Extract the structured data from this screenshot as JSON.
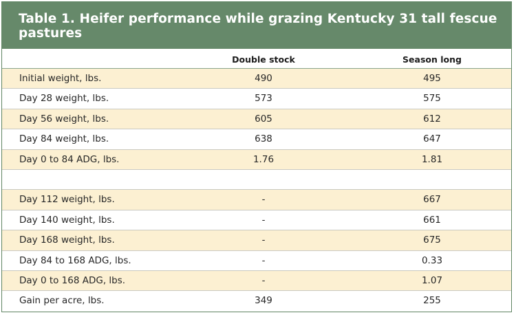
{
  "table": {
    "title": "Table 1. Heifer performance while grazing Kentucky 31 tall fescue pastures",
    "columns": [
      "Double stock",
      "Season long"
    ],
    "rows": [
      {
        "label": "Initial weight, lbs.",
        "double_stock": "490",
        "season_long": "495"
      },
      {
        "label": "Day 28 weight, lbs.",
        "double_stock": "573",
        "season_long": "575"
      },
      {
        "label": "Day 56 weight, lbs.",
        "double_stock": "605",
        "season_long": "612"
      },
      {
        "label": "Day 84 weight, lbs.",
        "double_stock": "638",
        "season_long": "647"
      },
      {
        "label": "Day 0 to 84 ADG, lbs.",
        "double_stock": "1.76",
        "season_long": "1.81"
      },
      {
        "label": "",
        "double_stock": "",
        "season_long": ""
      },
      {
        "label": "Day 112 weight, lbs.",
        "double_stock": "-",
        "season_long": "667"
      },
      {
        "label": "Day 140 weight, lbs.",
        "double_stock": "-",
        "season_long": "661"
      },
      {
        "label": "Day 168 weight, lbs.",
        "double_stock": "-",
        "season_long": "675"
      },
      {
        "label": "Day 84 to 168 ADG, lbs.",
        "double_stock": "-",
        "season_long": "0.33"
      },
      {
        "label": "Day 0 to 168 ADG, lbs.",
        "double_stock": "-",
        "season_long": "1.07"
      },
      {
        "label": "Gain per acre, lbs.",
        "double_stock": "349",
        "season_long": "255"
      }
    ]
  },
  "colors": {
    "title_bg": "#66896a",
    "border": "#5e8462",
    "alt_row_bg": "#fcf0d2",
    "row_bg": "#ffffff"
  }
}
